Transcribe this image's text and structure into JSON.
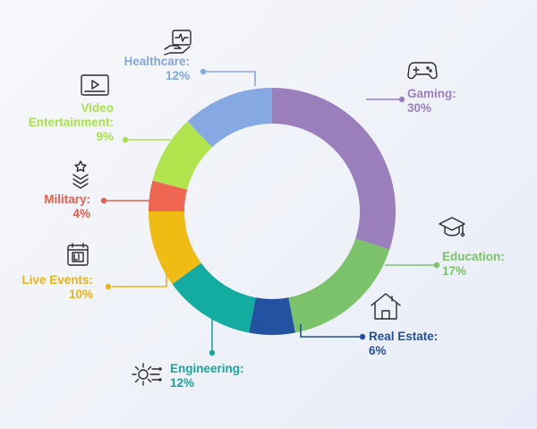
{
  "chart_data": {
    "type": "pie",
    "donut": true,
    "legend": "none",
    "categories": [
      "Gaming",
      "Education",
      "Real Estate",
      "Engineering",
      "Live Events",
      "Military",
      "Video Entertainment",
      "Healthcare"
    ],
    "values": [
      30,
      17,
      6,
      12,
      10,
      4,
      9,
      12
    ],
    "labels": [
      {
        "name": [
          "Gaming:"
        ],
        "pct": "30%",
        "color": "#9b7fbd",
        "icon": "gamepad-icon"
      },
      {
        "name": [
          "Education:"
        ],
        "pct": "17%",
        "color": "#7cc26a",
        "icon": "graduation-cap-icon"
      },
      {
        "name": [
          "Real Estate:"
        ],
        "pct": "6%",
        "color": "#22509f",
        "icon": "house-icon"
      },
      {
        "name": [
          "Engineering:"
        ],
        "pct": "12%",
        "color": "#17a79d",
        "icon": "gear-circuit-icon"
      },
      {
        "name": [
          "Live Events:"
        ],
        "pct": "10%",
        "color": "#e8b416",
        "icon": "live-calendar-icon"
      },
      {
        "name": [
          "Military:"
        ],
        "pct": "4%",
        "color": "#e35f4f",
        "icon": "military-rank-icon"
      },
      {
        "name": [
          "Video",
          "Entertainment:"
        ],
        "pct": "9%",
        "color": "#a9e04f",
        "icon": "video-player-icon"
      },
      {
        "name": [
          "Healthcare:"
        ],
        "pct": "12%",
        "color": "#84a7e0",
        "icon": "healthcare-hand-icon"
      }
    ],
    "segment_colors": [
      "#9b7fbd",
      "#7cc26a",
      "#2352a3",
      "#14aba1",
      "#f0bb12",
      "#ee6651",
      "#b2e54d",
      "#86a9e3"
    ]
  }
}
